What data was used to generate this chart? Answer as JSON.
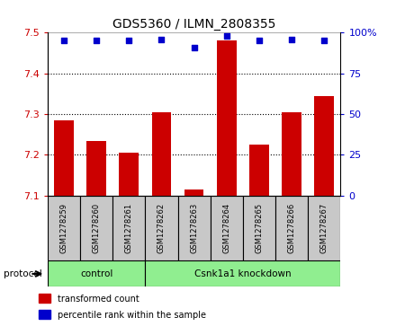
{
  "title": "GDS5360 / ILMN_2808355",
  "samples": [
    "GSM1278259",
    "GSM1278260",
    "GSM1278261",
    "GSM1278262",
    "GSM1278263",
    "GSM1278264",
    "GSM1278265",
    "GSM1278266",
    "GSM1278267"
  ],
  "bar_values": [
    7.285,
    7.235,
    7.205,
    7.305,
    7.115,
    7.48,
    7.225,
    7.305,
    7.345
  ],
  "percentile_values": [
    95,
    95,
    95,
    96,
    91,
    98,
    95,
    96,
    95
  ],
  "ylim_left": [
    7.1,
    7.5
  ],
  "ylim_right": [
    0,
    100
  ],
  "yticks_left": [
    7.1,
    7.2,
    7.3,
    7.4,
    7.5
  ],
  "yticks_right": [
    0,
    25,
    50,
    75,
    100
  ],
  "bar_color": "#CC0000",
  "dot_color": "#0000CC",
  "bar_bottom": 7.1,
  "protocol_groups": [
    {
      "label": "control",
      "start": 0,
      "end": 3
    },
    {
      "label": "Csnk1a1 knockdown",
      "start": 3,
      "end": 9
    }
  ],
  "protocol_label": "protocol",
  "protocol_bg": "#90EE90",
  "xlabel_bg": "#C8C8C8",
  "legend_items": [
    {
      "color": "#CC0000",
      "label": "transformed count"
    },
    {
      "color": "#0000CC",
      "label": "percentile rank within the sample"
    }
  ],
  "grid_yticks": [
    7.2,
    7.3,
    7.4
  ],
  "title_fontsize": 10,
  "tick_fontsize": 8,
  "n_samples": 9
}
